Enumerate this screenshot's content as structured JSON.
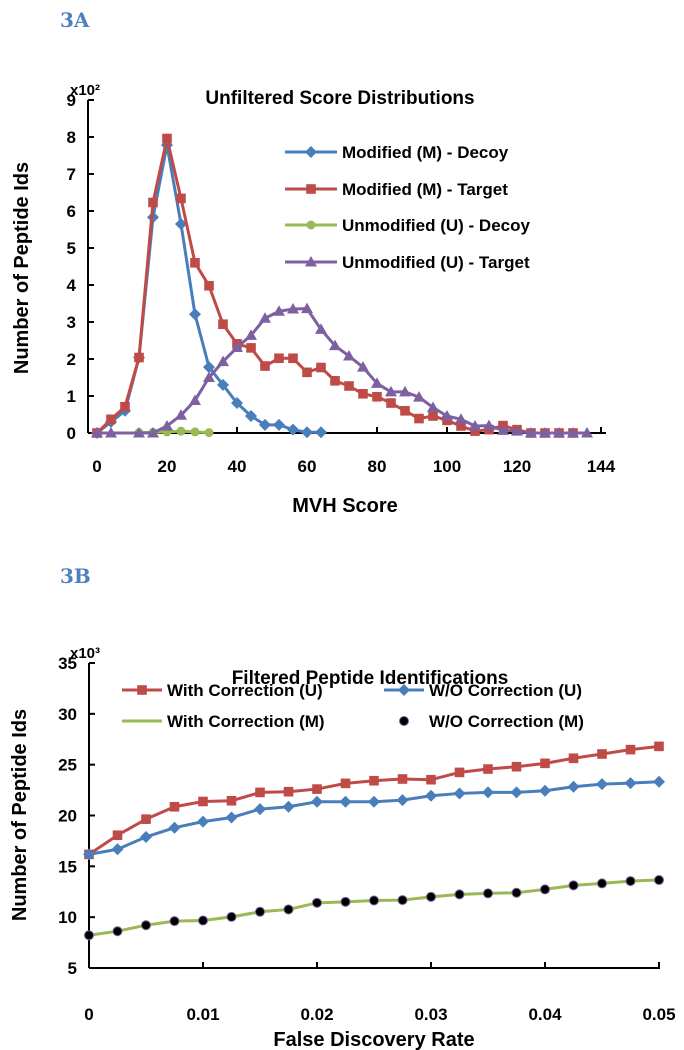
{
  "panels": {
    "a": "3A",
    "b": "3B"
  },
  "chart_data": [
    {
      "type": "line",
      "title": "Unfiltered Score Distributions",
      "xlabel": "MVH Score",
      "ylabel": "Number of Peptide Ids",
      "y_multiplier": "x10²",
      "xlim": [
        0,
        144
      ],
      "ylim": [
        0,
        9
      ],
      "xticks": [
        "0",
        "20",
        "40",
        "60",
        "80",
        "100",
        "120",
        "144"
      ],
      "xtick_values": [
        0,
        20,
        40,
        60,
        80,
        100,
        120,
        144
      ],
      "yticks": [
        "0",
        "1",
        "2",
        "3",
        "4",
        "5",
        "6",
        "7",
        "8",
        "9"
      ],
      "grid": false,
      "legend_position": "top-right",
      "series": [
        {
          "name": "Modified (M) - Decoy",
          "color": "#4a7ebb",
          "marker": "diamond",
          "x": [
            0,
            4,
            8,
            12,
            16,
            20,
            24,
            28,
            32,
            36,
            40,
            44,
            48,
            52,
            56,
            60,
            64
          ],
          "y": [
            0,
            0.3,
            0.6,
            2.04,
            5.83,
            7.78,
            5.65,
            3.21,
            1.78,
            1.3,
            0.81,
            0.46,
            0.22,
            0.22,
            0.09,
            0.02,
            0.02
          ]
        },
        {
          "name": "Modified (M) - Target",
          "color": "#be4b48",
          "marker": "square",
          "x": [
            0,
            4,
            8,
            12,
            16,
            20,
            24,
            28,
            32,
            36,
            40,
            44,
            48,
            52,
            56,
            60,
            64,
            68,
            72,
            76,
            80,
            84,
            88,
            92,
            96,
            100,
            104,
            108,
            112,
            116,
            120,
            124,
            128,
            132,
            136
          ],
          "y": [
            0,
            0.37,
            0.71,
            2.04,
            6.23,
            7.96,
            6.34,
            4.6,
            3.98,
            2.94,
            2.41,
            2.3,
            1.81,
            2.02,
            2.02,
            1.64,
            1.77,
            1.41,
            1.27,
            1.06,
            0.98,
            0.81,
            0.6,
            0.39,
            0.46,
            0.34,
            0.19,
            0.05,
            0.09,
            0.2,
            0.09,
            0,
            0,
            0,
            0
          ]
        },
        {
          "name": "Unmodified (U) - Decoy",
          "color": "#98b954",
          "marker": "circle",
          "x": [
            12,
            16,
            20,
            24,
            28,
            32
          ],
          "y": [
            0.01,
            0.02,
            0.03,
            0.05,
            0.03,
            0.01
          ]
        },
        {
          "name": "Unmodified (U) - Target",
          "color": "#7d60a0",
          "marker": "triangle",
          "x": [
            0,
            4,
            12,
            16,
            20,
            24,
            28,
            32,
            36,
            40,
            44,
            48,
            52,
            56,
            60,
            64,
            68,
            72,
            76,
            80,
            84,
            88,
            92,
            96,
            100,
            104,
            108,
            112,
            116,
            120,
            124,
            128,
            132,
            136,
            140
          ],
          "y": [
            0,
            0,
            0,
            0,
            0.19,
            0.48,
            0.88,
            1.5,
            1.93,
            2.31,
            2.64,
            3.1,
            3.29,
            3.35,
            3.36,
            2.8,
            2.36,
            2.08,
            1.78,
            1.34,
            1.11,
            1.11,
            0.97,
            0.69,
            0.46,
            0.37,
            0.19,
            0.2,
            0.07,
            0.05,
            0,
            0,
            0,
            0,
            0
          ]
        }
      ]
    },
    {
      "type": "line",
      "title": "Filtered Peptide Identifications",
      "xlabel": "False Discovery Rate",
      "ylabel": "Number of Peptide Ids",
      "y_multiplier": "x10³",
      "xlim": [
        0,
        0.05
      ],
      "ylim": [
        5,
        35
      ],
      "xticks": [
        "0",
        "0.01",
        "0.02",
        "0.03",
        "0.04",
        "0.05"
      ],
      "xtick_values": [
        0,
        0.01,
        0.02,
        0.03,
        0.04,
        0.05
      ],
      "yticks": [
        "5",
        "10",
        "15",
        "20",
        "25",
        "30",
        "35"
      ],
      "grid": false,
      "legend_position": "top",
      "x": [
        0,
        0.0025,
        0.005,
        0.0075,
        0.01,
        0.0125,
        0.015,
        0.0175,
        0.02,
        0.0225,
        0.025,
        0.0275,
        0.03,
        0.0325,
        0.035,
        0.0375,
        0.04,
        0.0425,
        0.045,
        0.0475,
        0.05
      ],
      "series": [
        {
          "name": "With Correction (U)",
          "color": "#be4b48",
          "marker": "square",
          "line": true,
          "y": [
            16.18,
            18.06,
            19.64,
            20.86,
            21.38,
            21.45,
            22.27,
            22.34,
            22.6,
            23.16,
            23.42,
            23.59,
            23.52,
            24.24,
            24.57,
            24.8,
            25.13,
            25.63,
            26.05,
            26.48,
            26.8
          ]
        },
        {
          "name": "W/O Correction (U)",
          "color": "#4a7ebb",
          "marker": "diamond",
          "line": true,
          "y": [
            16.18,
            16.68,
            17.89,
            18.8,
            19.4,
            19.8,
            20.63,
            20.86,
            21.35,
            21.35,
            21.35,
            21.51,
            21.94,
            22.17,
            22.27,
            22.27,
            22.43,
            22.83,
            23.09,
            23.19,
            23.32
          ]
        },
        {
          "name": "With Correction (M)",
          "color": "#98b954",
          "marker": "none",
          "line": true,
          "y": [
            8.22,
            8.62,
            9.21,
            9.61,
            9.67,
            10.03,
            10.53,
            10.76,
            11.41,
            11.51,
            11.64,
            11.68,
            12.0,
            12.24,
            12.34,
            12.4,
            12.73,
            13.13,
            13.32,
            13.55,
            13.65
          ]
        },
        {
          "name": "W/O Correction (M)",
          "color": "#000000",
          "marker": "circle",
          "line": false,
          "y": [
            8.22,
            8.62,
            9.21,
            9.61,
            9.67,
            10.03,
            10.53,
            10.76,
            11.41,
            11.51,
            11.64,
            11.68,
            12.0,
            12.24,
            12.34,
            12.4,
            12.73,
            13.13,
            13.32,
            13.55,
            13.65
          ]
        }
      ]
    }
  ],
  "panel_color": "#4f81bd"
}
